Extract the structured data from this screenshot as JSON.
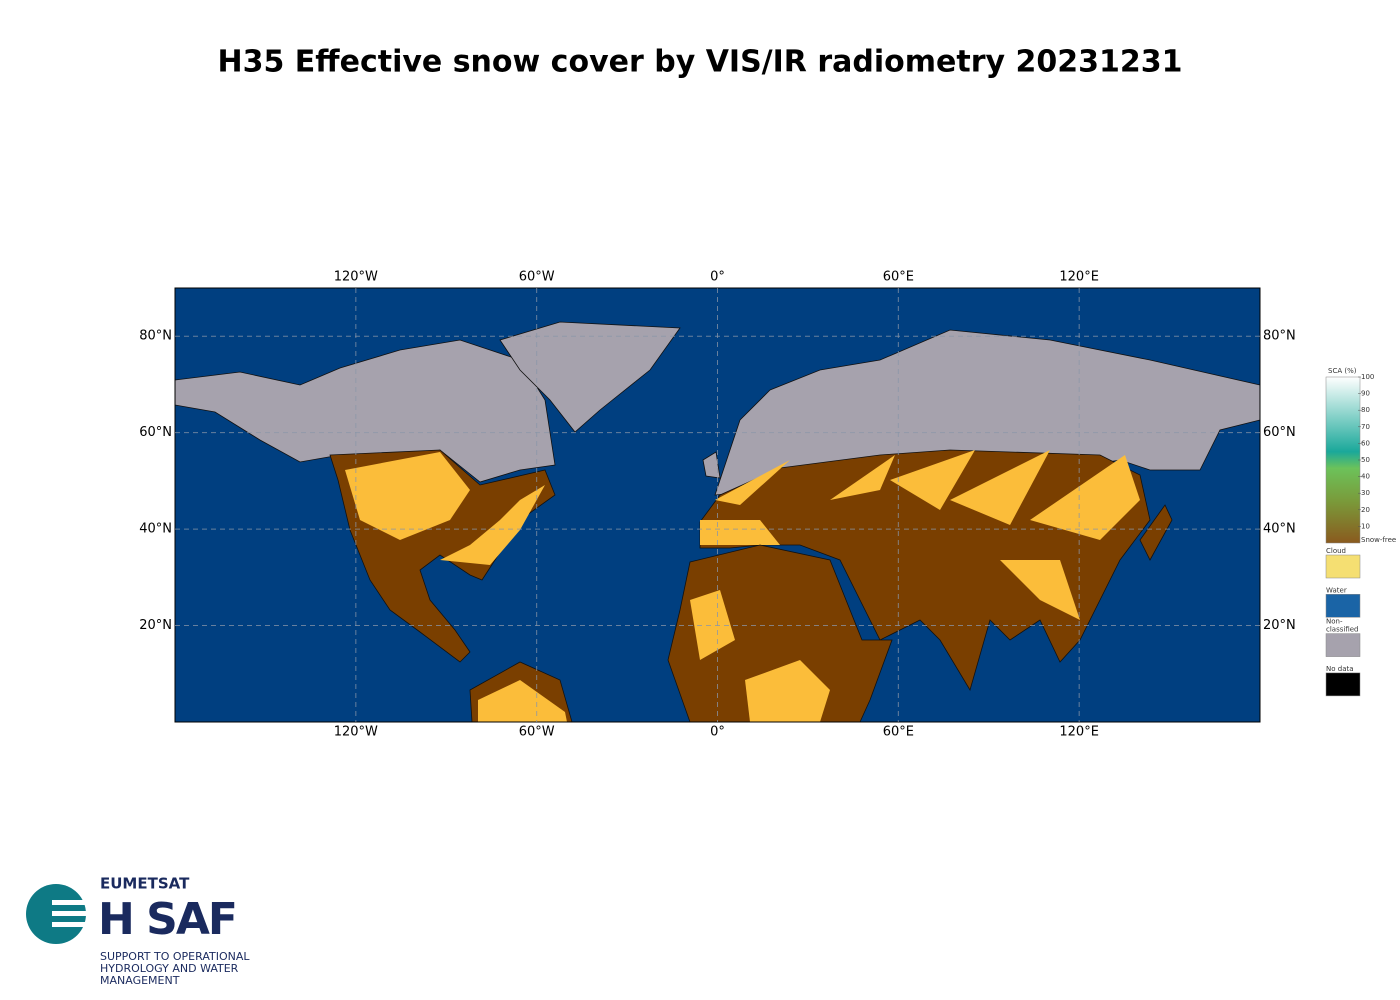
{
  "title": "H35 Effective snow cover by VIS/IR radiometry 20231231",
  "map": {
    "lonlim": [
      -180,
      180
    ],
    "latlim": [
      0,
      90
    ],
    "lon_ticks": [
      {
        "value": -120,
        "label": "120°W"
      },
      {
        "value": -60,
        "label": "60°W"
      },
      {
        "value": 0,
        "label": "0°"
      },
      {
        "value": 60,
        "label": "60°E"
      },
      {
        "value": 120,
        "label": "120°E"
      }
    ],
    "lat_ticks": [
      {
        "value": 20,
        "label": "20°N"
      },
      {
        "value": 40,
        "label": "40°N"
      },
      {
        "value": 60,
        "label": "60°N"
      },
      {
        "value": 80,
        "label": "80°N"
      }
    ]
  },
  "legend": {
    "title": "SCA (%)",
    "range": [
      0,
      100
    ],
    "ticks": [
      100,
      90,
      80,
      70,
      60,
      50,
      40,
      30,
      20,
      10
    ],
    "snow_free": "Snow-free",
    "items": [
      {
        "label": [
          "Cloud"
        ],
        "color": "#f5df72"
      },
      {
        "label": [
          "Water"
        ],
        "color": "#1a64a6"
      },
      {
        "label": [
          "Non-",
          "classified"
        ],
        "color": "#a6a2ad"
      },
      {
        "label": [
          "No data"
        ],
        "color": "#000000"
      }
    ]
  },
  "logo": {
    "org": "EUMETSAT",
    "name": "H SAF",
    "tagline": [
      "SUPPORT TO OPERATIONAL",
      "HYDROLOGY AND WATER",
      "MANAGEMENT"
    ]
  }
}
